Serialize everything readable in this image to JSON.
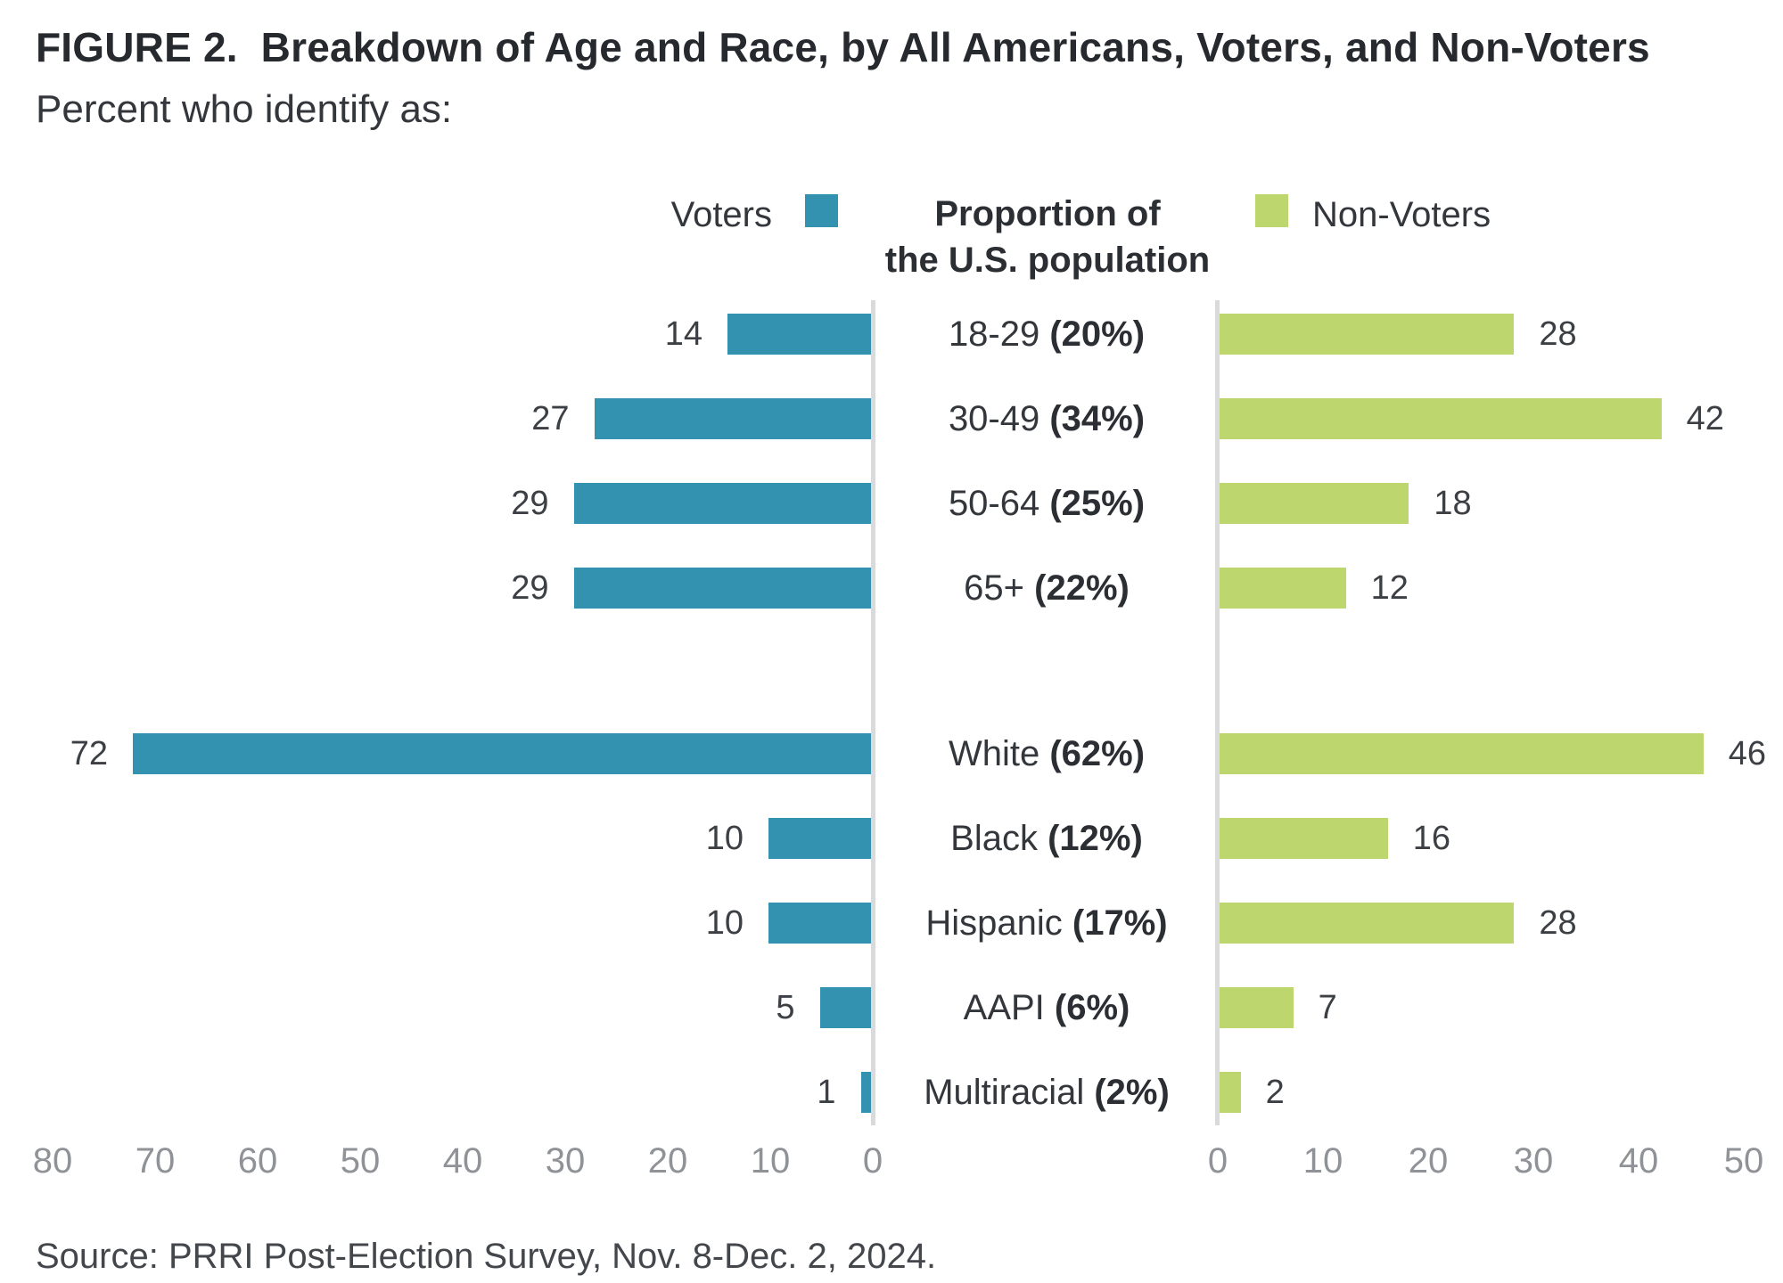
{
  "title": "FIGURE 2.  Breakdown of Age and Race, by All Americans, Voters, and Non-Voters",
  "subtitle": "Percent who identify as:",
  "source": "Source: PRRI Post-Election Survey, Nov. 8-Dec. 2, 2024.",
  "legend": {
    "voters_label": "Voters",
    "center_line1": "Proportion of",
    "center_line2": "the U.S. population",
    "nonvoters_label": "Non-Voters"
  },
  "colors": {
    "voters": "#3292af",
    "nonvoters": "#bed66e",
    "axis_line": "#d9dadb",
    "tick_text": "#8f9296",
    "text_dark": "#26292e",
    "text_body": "#33373c"
  },
  "chart_data": {
    "type": "bar",
    "orientation": "horizontal-diverging",
    "series_names": [
      "Voters",
      "Non-Voters"
    ],
    "center_header": "Proportion of the U.S. population",
    "left_axis": {
      "title": "Voters",
      "min": 0,
      "max": 80,
      "reversed": true,
      "ticks": [
        80,
        70,
        60,
        50,
        40,
        30,
        20,
        10,
        0
      ]
    },
    "right_axis": {
      "title": "Non-Voters",
      "min": 0,
      "max": 50,
      "reversed": false,
      "ticks": [
        0,
        10,
        20,
        30,
        40,
        50
      ]
    },
    "groups": [
      {
        "name": "age",
        "rows": [
          {
            "label": "18-29",
            "population_share": "(20%)",
            "voters": 14,
            "non_voters": 28
          },
          {
            "label": "30-49",
            "population_share": "(34%)",
            "voters": 27,
            "non_voters": 42
          },
          {
            "label": "50-64",
            "population_share": "(25%)",
            "voters": 29,
            "non_voters": 18
          },
          {
            "label": "65+",
            "population_share": "(22%)",
            "voters": 29,
            "non_voters": 12
          }
        ]
      },
      {
        "name": "race",
        "rows": [
          {
            "label": "White",
            "population_share": "(62%)",
            "voters": 72,
            "non_voters": 46
          },
          {
            "label": "Black",
            "population_share": "(12%)",
            "voters": 10,
            "non_voters": 16
          },
          {
            "label": "Hispanic",
            "population_share": "(17%)",
            "voters": 10,
            "non_voters": 28
          },
          {
            "label": "AAPI",
            "population_share": "(6%)",
            "voters": 5,
            "non_voters": 7
          },
          {
            "label": "Multiracial",
            "population_share": "(2%)",
            "voters": 1,
            "non_voters": 2
          }
        ]
      }
    ]
  }
}
